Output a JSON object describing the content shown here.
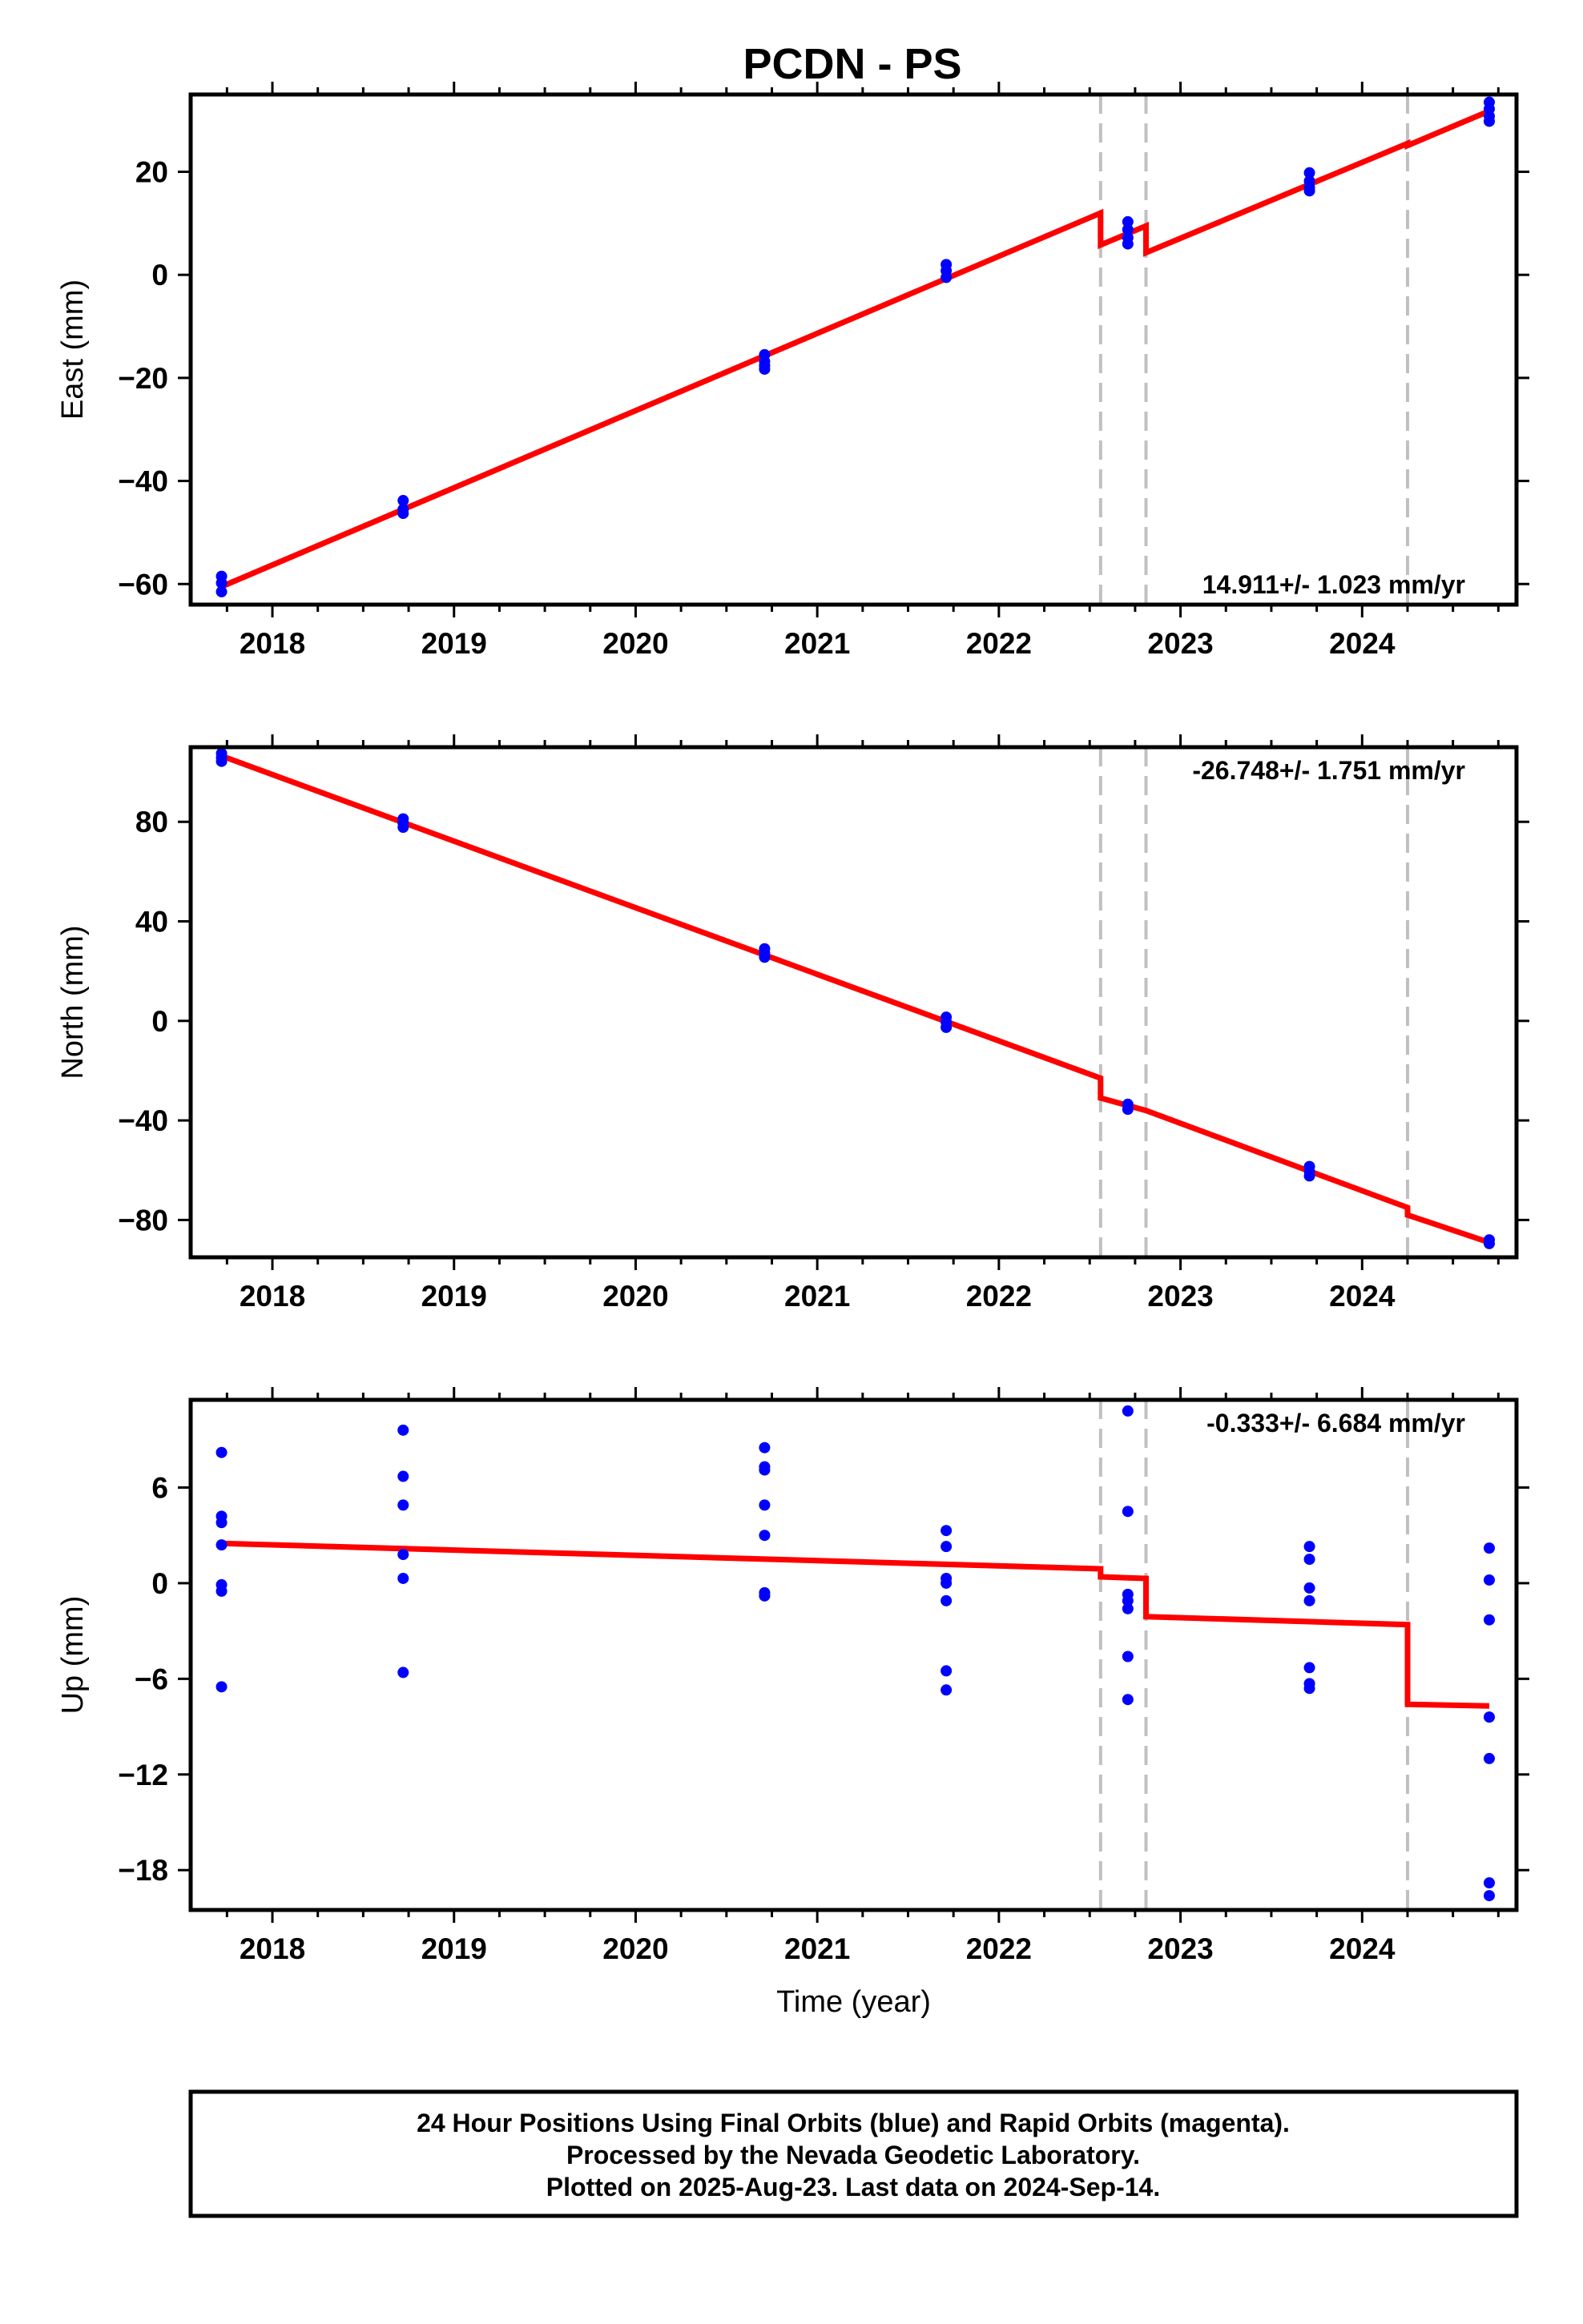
{
  "title": "PCDN - PS",
  "footer": {
    "lines": [
      "24 Hour Positions Using Final Orbits (blue) and Rapid Orbits (magenta).",
      "Processed by the Nevada Geodetic Laboratory.",
      "Plotted on 2025-Aug-23. Last data on 2024-Sep-14."
    ]
  },
  "colors": {
    "data_points": "#0000ff",
    "model_line": "#ff0000",
    "event_line": "#c0c0c0",
    "axis": "#000000"
  },
  "chart_data": [
    {
      "type": "scatter",
      "name": "East",
      "ylabel": "East (mm)",
      "xlabel": "",
      "rate_text": "14.911+/- 1.023 mm/yr",
      "rate_position": "bottom-right",
      "xlim": [
        2017.55,
        2024.85
      ],
      "ylim": [
        -64,
        35
      ],
      "xticks": [
        2018,
        2019,
        2020,
        2021,
        2022,
        2023,
        2024
      ],
      "yticks": [
        -60,
        -40,
        -20,
        0,
        20
      ],
      "ytick_labels": [
        "−60",
        "−40",
        "−20",
        "0",
        "20"
      ],
      "events": [
        2022.56,
        2022.81,
        2024.25
      ],
      "points": [
        {
          "x": 2017.72,
          "y": -58.5
        },
        {
          "x": 2017.72,
          "y": -59.8
        },
        {
          "x": 2017.72,
          "y": -61.5
        },
        {
          "x": 2018.72,
          "y": -43.8
        },
        {
          "x": 2018.72,
          "y": -45.5
        },
        {
          "x": 2018.72,
          "y": -46.3
        },
        {
          "x": 2020.71,
          "y": -15.5
        },
        {
          "x": 2020.71,
          "y": -16.8
        },
        {
          "x": 2020.71,
          "y": -17.6
        },
        {
          "x": 2020.71,
          "y": -18.3
        },
        {
          "x": 2021.71,
          "y": 2.0
        },
        {
          "x": 2021.71,
          "y": 0.8
        },
        {
          "x": 2021.71,
          "y": -0.5
        },
        {
          "x": 2022.71,
          "y": 10.3
        },
        {
          "x": 2022.71,
          "y": 8.8
        },
        {
          "x": 2022.71,
          "y": 7.2
        },
        {
          "x": 2022.71,
          "y": 6.0
        },
        {
          "x": 2023.71,
          "y": 19.8
        },
        {
          "x": 2023.71,
          "y": 18.2
        },
        {
          "x": 2023.71,
          "y": 17.0
        },
        {
          "x": 2023.71,
          "y": 16.3
        },
        {
          "x": 2024.7,
          "y": 33.5
        },
        {
          "x": 2024.7,
          "y": 32.2
        },
        {
          "x": 2024.7,
          "y": 30.8
        },
        {
          "x": 2024.7,
          "y": 29.8
        }
      ],
      "model": [
        {
          "x": 2017.72,
          "y": -60.5
        },
        {
          "x": 2022.56,
          "y": 12.0
        },
        {
          "x": 2022.56,
          "y": 5.8
        },
        {
          "x": 2022.81,
          "y": 9.5
        },
        {
          "x": 2022.81,
          "y": 4.3
        },
        {
          "x": 2024.25,
          "y": 25.5
        },
        {
          "x": 2024.25,
          "y": 25.1
        },
        {
          "x": 2024.7,
          "y": 31.8
        }
      ]
    },
    {
      "type": "scatter",
      "name": "North",
      "ylabel": "North (mm)",
      "xlabel": "",
      "rate_text": "-26.748+/- 1.751 mm/yr",
      "rate_position": "top-right",
      "xlim": [
        2017.55,
        2024.85
      ],
      "ylim": [
        -95,
        110
      ],
      "xticks": [
        2018,
        2019,
        2020,
        2021,
        2022,
        2023,
        2024
      ],
      "yticks": [
        -80,
        -40,
        0,
        40,
        80
      ],
      "ytick_labels": [
        "−80",
        "−40",
        "0",
        "40",
        "80"
      ],
      "events": [
        2022.56,
        2022.81,
        2024.25
      ],
      "points": [
        {
          "x": 2017.72,
          "y": 107.5
        },
        {
          "x": 2017.72,
          "y": 105.8
        },
        {
          "x": 2017.72,
          "y": 104.3
        },
        {
          "x": 2018.72,
          "y": 81.2
        },
        {
          "x": 2018.72,
          "y": 79.5
        },
        {
          "x": 2018.72,
          "y": 77.8
        },
        {
          "x": 2020.71,
          "y": 29.0
        },
        {
          "x": 2020.71,
          "y": 27.2
        },
        {
          "x": 2020.71,
          "y": 25.6
        },
        {
          "x": 2021.71,
          "y": 1.5
        },
        {
          "x": 2021.71,
          "y": -0.5
        },
        {
          "x": 2021.71,
          "y": -2.6
        },
        {
          "x": 2022.71,
          "y": -33.5
        },
        {
          "x": 2022.71,
          "y": -35.5
        },
        {
          "x": 2023.71,
          "y": -58.5
        },
        {
          "x": 2023.71,
          "y": -60.5
        },
        {
          "x": 2023.71,
          "y": -62.3
        },
        {
          "x": 2024.7,
          "y": -88.0
        },
        {
          "x": 2024.7,
          "y": -89.5
        }
      ],
      "model": [
        {
          "x": 2017.72,
          "y": 106.5
        },
        {
          "x": 2022.56,
          "y": -23.0
        },
        {
          "x": 2022.56,
          "y": -31.0
        },
        {
          "x": 2022.81,
          "y": -36.0
        },
        {
          "x": 2024.25,
          "y": -75.0
        },
        {
          "x": 2024.25,
          "y": -78.0
        },
        {
          "x": 2024.7,
          "y": -89.0
        }
      ]
    },
    {
      "type": "scatter",
      "name": "Up",
      "ylabel": "Up (mm)",
      "xlabel": "Time (year)",
      "rate_text": "-0.333+/- 6.684 mm/yr",
      "rate_position": "top-right",
      "xlim": [
        2017.55,
        2024.85
      ],
      "ylim": [
        -20.5,
        11.5
      ],
      "xticks": [
        2018,
        2019,
        2020,
        2021,
        2022,
        2023,
        2024
      ],
      "yticks": [
        -18,
        -12,
        -6,
        0,
        6
      ],
      "ytick_labels": [
        "−18",
        "−12",
        "−6",
        "0",
        "6"
      ],
      "events": [
        2022.56,
        2022.81,
        2024.25
      ],
      "points": [
        {
          "x": 2017.72,
          "y": 8.2
        },
        {
          "x": 2017.72,
          "y": 4.2
        },
        {
          "x": 2017.72,
          "y": 3.8
        },
        {
          "x": 2017.72,
          "y": 2.4
        },
        {
          "x": 2017.72,
          "y": -0.1
        },
        {
          "x": 2017.72,
          "y": -0.5
        },
        {
          "x": 2017.72,
          "y": -6.5
        },
        {
          "x": 2018.72,
          "y": 9.6
        },
        {
          "x": 2018.72,
          "y": 6.7
        },
        {
          "x": 2018.72,
          "y": 4.9
        },
        {
          "x": 2018.72,
          "y": 1.8
        },
        {
          "x": 2018.72,
          "y": 0.3
        },
        {
          "x": 2018.72,
          "y": -5.6
        },
        {
          "x": 2020.71,
          "y": 8.5
        },
        {
          "x": 2020.71,
          "y": 7.3
        },
        {
          "x": 2020.71,
          "y": 7.1
        },
        {
          "x": 2020.71,
          "y": 4.9
        },
        {
          "x": 2020.71,
          "y": 3.0
        },
        {
          "x": 2020.71,
          "y": -0.6
        },
        {
          "x": 2020.71,
          "y": -0.8
        },
        {
          "x": 2021.71,
          "y": 3.3
        },
        {
          "x": 2021.71,
          "y": 2.3
        },
        {
          "x": 2021.71,
          "y": 0.3
        },
        {
          "x": 2021.71,
          "y": 0.0
        },
        {
          "x": 2021.71,
          "y": -1.1
        },
        {
          "x": 2021.71,
          "y": -5.5
        },
        {
          "x": 2021.71,
          "y": -6.7
        },
        {
          "x": 2022.71,
          "y": 10.8
        },
        {
          "x": 2022.71,
          "y": 4.5
        },
        {
          "x": 2022.71,
          "y": -0.7
        },
        {
          "x": 2022.71,
          "y": -1.1
        },
        {
          "x": 2022.71,
          "y": -1.6
        },
        {
          "x": 2022.71,
          "y": -4.6
        },
        {
          "x": 2022.71,
          "y": -7.3
        },
        {
          "x": 2023.71,
          "y": 2.3
        },
        {
          "x": 2023.71,
          "y": 1.5
        },
        {
          "x": 2023.71,
          "y": -0.3
        },
        {
          "x": 2023.71,
          "y": -1.1
        },
        {
          "x": 2023.71,
          "y": -5.3
        },
        {
          "x": 2023.71,
          "y": -6.3
        },
        {
          "x": 2023.71,
          "y": -6.6
        },
        {
          "x": 2024.7,
          "y": 2.2
        },
        {
          "x": 2024.7,
          "y": 0.2
        },
        {
          "x": 2024.7,
          "y": -2.3
        },
        {
          "x": 2024.7,
          "y": -8.4
        },
        {
          "x": 2024.7,
          "y": -11.0
        },
        {
          "x": 2024.7,
          "y": -18.8
        },
        {
          "x": 2024.7,
          "y": -19.6
        }
      ],
      "model": [
        {
          "x": 2017.72,
          "y": 2.5
        },
        {
          "x": 2022.56,
          "y": 0.9
        },
        {
          "x": 2022.56,
          "y": 0.4
        },
        {
          "x": 2022.81,
          "y": 0.3
        },
        {
          "x": 2022.81,
          "y": -2.1
        },
        {
          "x": 2024.25,
          "y": -2.6
        },
        {
          "x": 2024.25,
          "y": -7.6
        },
        {
          "x": 2024.7,
          "y": -7.7
        }
      ]
    }
  ]
}
